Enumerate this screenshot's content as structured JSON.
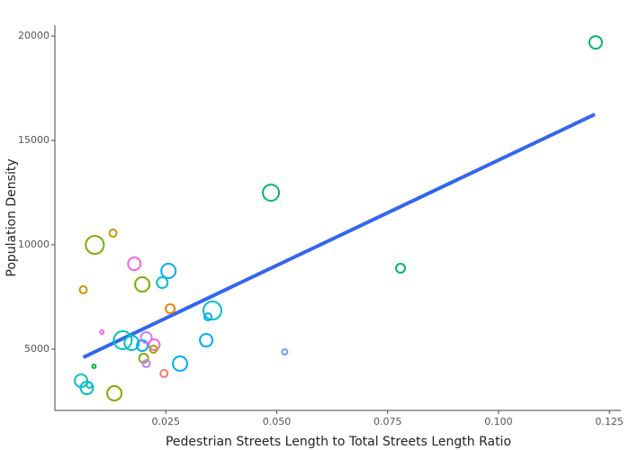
{
  "chart_data": {
    "type": "scatter",
    "x_label": "Pedestrian Streets Length to Total Streets Length Ratio",
    "y_label": "Population Density",
    "x": [
      0.1219,
      0.0487,
      0.0779,
      0.009,
      0.0131,
      0.0064,
      0.0179,
      0.0197,
      0.0256,
      0.0242,
      0.026,
      0.0355,
      0.0345,
      0.0106,
      0.0153,
      0.0173,
      0.0197,
      0.0206,
      0.0224,
      0.0222,
      0.02,
      0.0206,
      0.0341,
      0.0282,
      0.0088,
      0.0246,
      0.0518,
      0.0059,
      0.0072,
      0.0078,
      0.0134
    ],
    "values": [
      19697,
      12499,
      8879,
      9999,
      10560,
      7844,
      9094,
      8103,
      8749,
      8189,
      6939,
      6853,
      6551,
      5818,
      5431,
      5301,
      5172,
      5560,
      5215,
      5000,
      4569,
      4310,
      5431,
      4310,
      4181,
      3836,
      4870,
      3491,
      3146,
      3276,
      2888
    ],
    "sizes": [
      7,
      9,
      5,
      10,
      4,
      4,
      7,
      8,
      8,
      6,
      5,
      10,
      4,
      2,
      10,
      8,
      6,
      6,
      6,
      4,
      5,
      4,
      7,
      8,
      2,
      4,
      3,
      7,
      7,
      3,
      8
    ],
    "colors": [
      "#00b76a",
      "#00b76a",
      "#00b76a",
      "#7cae00",
      "#c49a00",
      "#cd9600",
      "#f564e3",
      "#7cae00",
      "#00a9ff",
      "#00bfc4",
      "#e58700",
      "#00bfc4",
      "#00a9ff",
      "#f564e3",
      "#00bfc4",
      "#00bfc4",
      "#00a9ff",
      "#c77cff",
      "#f564e3",
      "#a3a500",
      "#7cae00",
      "#c77cff",
      "#00a9ff",
      "#00a9ff",
      "#00ba38",
      "#f8766d",
      "#619cff",
      "#00bfc4",
      "#00bfc4",
      "#00bfc4",
      "#7cae00"
    ],
    "trend_line": {
      "x": [
        0.0064,
        0.1217
      ],
      "y": [
        4612,
        16249
      ],
      "color": "#3366ee"
    },
    "xlim": [
      0,
      0.1276
    ],
    "ylim": [
      2070,
      20520
    ],
    "xticks": [
      0.025,
      {
        "value": 0.05,
        "label": "0.050"
      },
      0.075,
      {
        "value": 0.1,
        "label": "0.100"
      },
      0.125
    ],
    "yticks": [
      5000,
      10000,
      15000,
      20000
    ]
  }
}
